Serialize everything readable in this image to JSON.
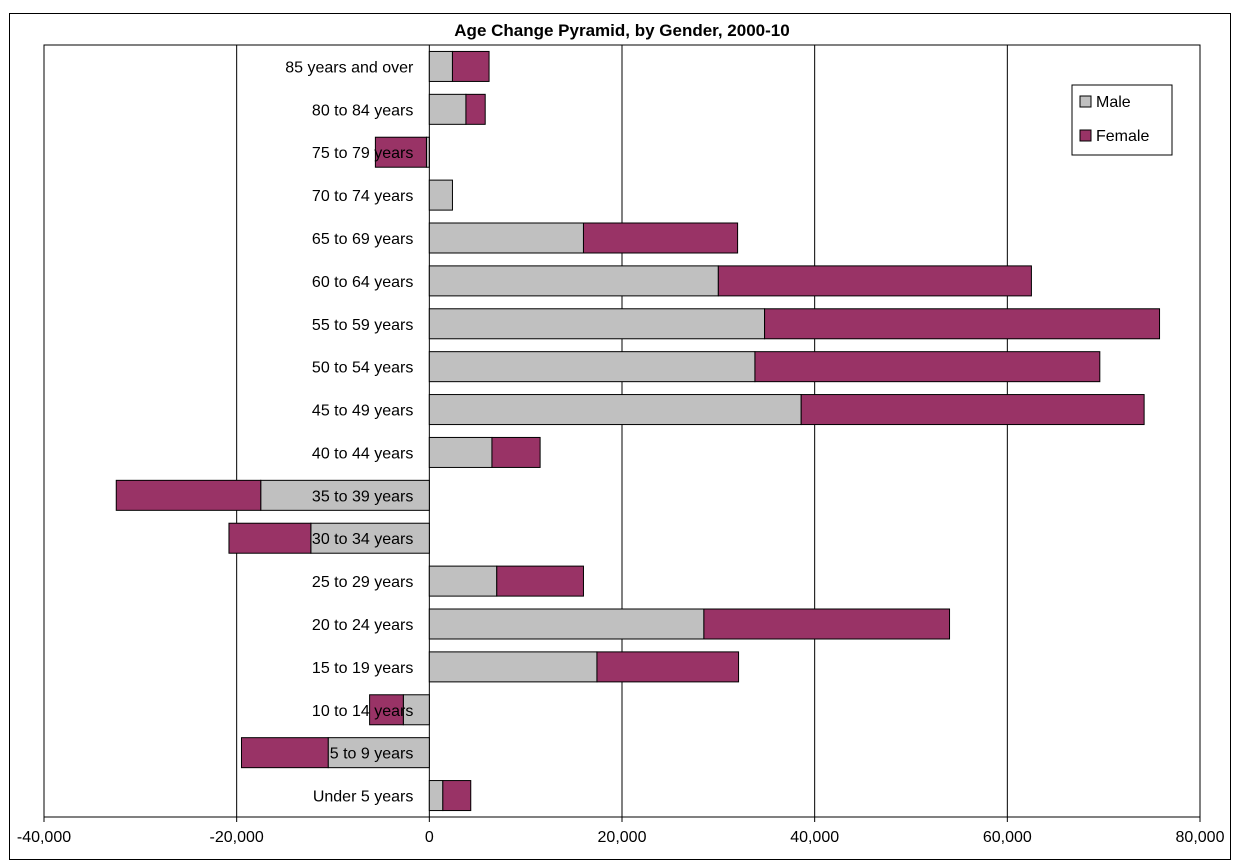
{
  "chart_data": {
    "type": "bar",
    "orientation": "horizontal",
    "stacked": true,
    "title": "Age Change Pyramid, by Gender, 2000-10",
    "categories": [
      "85 years and over",
      "80 to 84 years",
      "75 to 79 years",
      "70 to 74 years",
      "65 to 69 years",
      "60 to 64 years",
      "55 to 59 years",
      "50 to 54 years",
      "45 to 49 years",
      "40 to 44 years",
      "35 to 39 years",
      "30 to 34 years",
      "25 to 29 years",
      "20 to 24 years",
      "15 to 19 years",
      "10 to 14 years",
      "5 to 9 years",
      "Under 5 years"
    ],
    "series": [
      {
        "name": "Male",
        "color": "#C0C0C0",
        "values": [
          2400,
          3800,
          -300,
          2400,
          16000,
          30000,
          34800,
          33800,
          38600,
          6500,
          -17500,
          -12300,
          7000,
          28500,
          17400,
          -2700,
          -10500,
          1400
        ]
      },
      {
        "name": "Female",
        "color": "#993366",
        "values": [
          3800,
          2000,
          -5300,
          0,
          16000,
          32500,
          41000,
          35800,
          35600,
          5000,
          -15000,
          -8500,
          9000,
          25500,
          14700,
          -3500,
          -9000,
          2900
        ]
      }
    ],
    "xlim": [
      -40000,
      80000
    ],
    "xticks": [
      -40000,
      -20000,
      0,
      20000,
      40000,
      60000,
      80000
    ],
    "xtick_labels": [
      "-40,000",
      "-20,000",
      "0",
      "20,000",
      "40,000",
      "60,000",
      "80,000"
    ],
    "grid": "vertical",
    "legend_position": "top-right"
  }
}
